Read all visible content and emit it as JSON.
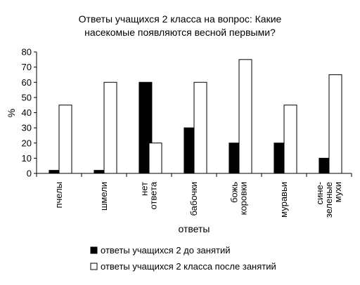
{
  "chart_data": {
    "type": "bar",
    "title_lines": [
      "Ответы учащихся 2 класса на вопрос: Какие",
      "насекомые появляются весной первыми?"
    ],
    "xlabel": "ответы",
    "ylabel": "%",
    "ylim": [
      0,
      80
    ],
    "yticks": [
      0,
      10,
      20,
      30,
      40,
      50,
      60,
      70,
      80
    ],
    "categories": [
      [
        "пчелы"
      ],
      [
        "шмели"
      ],
      [
        "нет",
        "ответа"
      ],
      [
        "бабочки"
      ],
      [
        "божь",
        "коровки"
      ],
      [
        "муравьи"
      ],
      [
        "сине-",
        "зеленые",
        "мухи"
      ]
    ],
    "series": [
      {
        "name": "ответы учащихся 2 до занятий",
        "color": "#000000",
        "values": [
          2,
          2,
          60,
          30,
          20,
          20,
          10
        ]
      },
      {
        "name": "ответы учащихся 2 класса после занятий",
        "color": "#ffffff",
        "values": [
          45,
          60,
          20,
          60,
          75,
          45,
          65
        ]
      }
    ],
    "legend_position": "bottom",
    "grid": false
  }
}
